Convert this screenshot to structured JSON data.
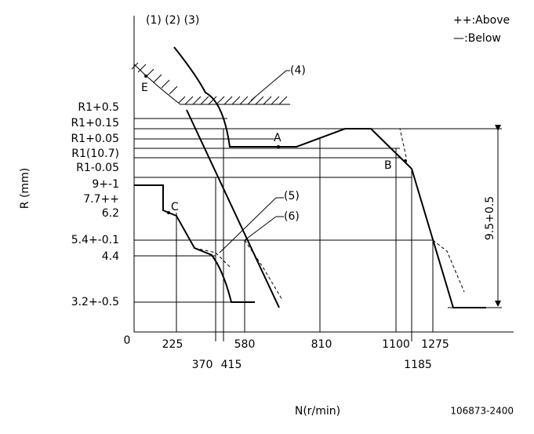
{
  "header": {
    "curves": "(1) (2) (3)",
    "legend_above": "++:Above",
    "legend_below": "—:Below"
  },
  "callouts": {
    "c4": "(4)",
    "c5": "(5)",
    "c6": "(6)"
  },
  "points": {
    "a": "A",
    "b": "B",
    "c": "C",
    "e": "E"
  },
  "y_labels": [
    "R1+0.5",
    "R1+0.15",
    "R1+0.05",
    "R1(10.7)",
    "R1-0.05",
    "9+-1",
    "7.7++",
    "6.2",
    "5.4+-0.1",
    "4.4",
    "3.2+-0.5"
  ],
  "x_labels": [
    "0",
    "225",
    "370",
    "415",
    "580",
    "810",
    "1100",
    "1185",
    "1275"
  ],
  "dimension": "9.5+0.5",
  "axis": {
    "y_title": "R (mm)",
    "x_title": "N(r/min)"
  },
  "footer": {
    "code": "106873-2400"
  }
}
